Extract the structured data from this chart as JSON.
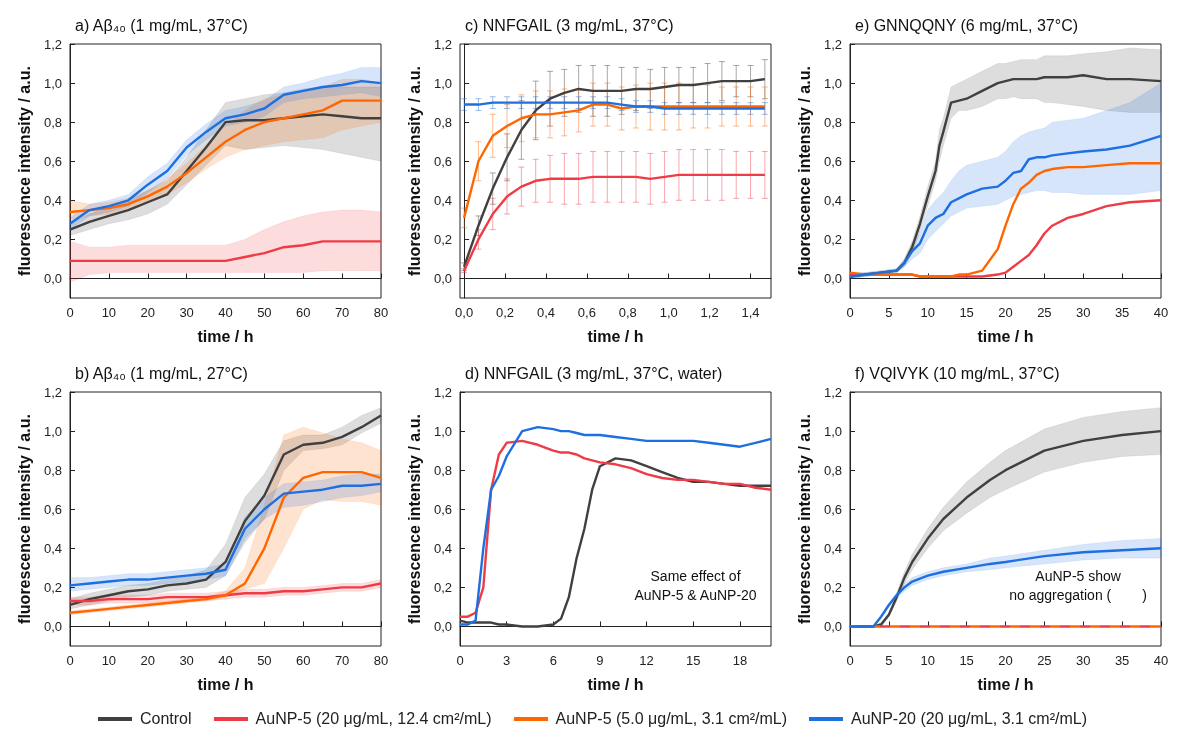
{
  "chart_data": [
    {
      "type": "line",
      "title": "a) Aβ₄₀ (1 mg/mL, 37°C)",
      "xlabel": "time / h",
      "ylabel": "fluorescence intensity / a.u.",
      "legend": "bottom",
      "xlim": [
        0,
        80
      ],
      "xticks": [
        0,
        10,
        20,
        30,
        40,
        50,
        60,
        70,
        80
      ],
      "ylim": [
        -0.1,
        1.2
      ],
      "yticks": [
        {
          "value": 0,
          "label": "0,0"
        },
        {
          "value": 0.2,
          "label": "0,2"
        },
        {
          "value": 0.4,
          "label": "0,4"
        },
        {
          "value": 0.6,
          "label": "0,6"
        },
        {
          "value": 0.8,
          "label": "0,8"
        },
        {
          "value": 1.0,
          "label": "1,0"
        },
        {
          "value": 1.2,
          "label": "1,2"
        }
      ],
      "x": [
        0,
        5,
        10,
        15,
        20,
        25,
        30,
        35,
        40,
        45,
        50,
        55,
        60,
        65,
        70,
        75,
        80
      ],
      "series": [
        {
          "name": "Control",
          "color": "#404040",
          "values": [
            0.25,
            0.29,
            0.32,
            0.35,
            0.39,
            0.43,
            0.55,
            0.67,
            0.8,
            0.81,
            0.81,
            0.82,
            0.83,
            0.84,
            0.83,
            0.82,
            0.82
          ],
          "lower": [
            0.22,
            0.25,
            0.28,
            0.3,
            0.33,
            0.38,
            0.48,
            0.58,
            0.68,
            0.66,
            0.67,
            0.68,
            0.67,
            0.66,
            0.64,
            0.62,
            0.6
          ],
          "upper": [
            0.28,
            0.33,
            0.36,
            0.4,
            0.45,
            0.5,
            0.62,
            0.76,
            0.9,
            0.92,
            0.94,
            0.95,
            0.97,
            0.98,
            0.98,
            0.98,
            0.98
          ]
        },
        {
          "name": "AuNP-5 (20 μg/mL, 12.4 cm²/mL)",
          "color": "#ef3b45",
          "values": [
            0.09,
            0.09,
            0.09,
            0.09,
            0.09,
            0.09,
            0.09,
            0.09,
            0.09,
            0.11,
            0.13,
            0.16,
            0.17,
            0.19,
            0.19,
            0.19,
            0.19
          ],
          "lower": [
            -0.02,
            0.02,
            0.03,
            0.03,
            0.03,
            0.03,
            0.03,
            0.03,
            0.03,
            0.03,
            0.03,
            0.03,
            0.03,
            0.04,
            0.04,
            0.04,
            0.04
          ],
          "upper": [
            0.19,
            0.16,
            0.16,
            0.17,
            0.17,
            0.17,
            0.17,
            0.17,
            0.17,
            0.2,
            0.25,
            0.29,
            0.32,
            0.34,
            0.35,
            0.35,
            0.34
          ]
        },
        {
          "name": "AuNP-5 (5.0 μg/mL, 3.1 cm²/mL)",
          "color": "#ff6600",
          "values": [
            0.34,
            0.35,
            0.36,
            0.38,
            0.42,
            0.47,
            0.54,
            0.62,
            0.7,
            0.76,
            0.8,
            0.82,
            0.84,
            0.86,
            0.91,
            0.91,
            0.91
          ],
          "lower": [
            0.3,
            0.32,
            0.33,
            0.35,
            0.39,
            0.43,
            0.49,
            0.56,
            0.62,
            0.66,
            0.68,
            0.7,
            0.71,
            0.72,
            0.76,
            0.78,
            0.8
          ],
          "upper": [
            0.4,
            0.38,
            0.39,
            0.41,
            0.45,
            0.51,
            0.59,
            0.68,
            0.78,
            0.86,
            0.92,
            0.94,
            0.96,
            0.98,
            1.02,
            1.02,
            1.0
          ]
        },
        {
          "name": "AuNP-20 (20 μg/mL, 3.1 cm²/mL)",
          "color": "#1e6fe0",
          "values": [
            0.28,
            0.35,
            0.37,
            0.4,
            0.48,
            0.55,
            0.67,
            0.75,
            0.82,
            0.84,
            0.87,
            0.94,
            0.96,
            0.98,
            0.99,
            1.01,
            1.0
          ],
          "lower": [
            0.25,
            0.32,
            0.34,
            0.37,
            0.44,
            0.51,
            0.63,
            0.71,
            0.78,
            0.8,
            0.83,
            0.9,
            0.92,
            0.93,
            0.94,
            0.95,
            0.93
          ],
          "upper": [
            0.31,
            0.38,
            0.4,
            0.43,
            0.52,
            0.59,
            0.71,
            0.79,
            0.86,
            0.88,
            0.91,
            0.98,
            1.0,
            1.03,
            1.05,
            1.08,
            1.08
          ]
        }
      ]
    },
    {
      "type": "line",
      "title": "c) NNFGAIL (3 mg/mL, 37°C)",
      "xlabel": "time / h",
      "ylabel": "fluorescence intensity / a.u.",
      "legend": "bottom",
      "xlim": [
        -0.02,
        1.5
      ],
      "xticks": [
        {
          "value": 0,
          "label": "0,0"
        },
        {
          "value": 0.2,
          "label": "0,2"
        },
        {
          "value": 0.4,
          "label": "0,4"
        },
        {
          "value": 0.6,
          "label": "0,6"
        },
        {
          "value": 0.8,
          "label": "0,8"
        },
        {
          "value": 1.0,
          "label": "1,0"
        },
        {
          "value": 1.2,
          "label": "1,2"
        },
        {
          "value": 1.4,
          "label": "1,4"
        }
      ],
      "ylim": [
        -0.1,
        1.2
      ],
      "yticks": [
        {
          "value": 0,
          "label": "0,0"
        },
        {
          "value": 0.2,
          "label": "0,2"
        },
        {
          "value": 0.4,
          "label": "0,4"
        },
        {
          "value": 0.6,
          "label": "0,6"
        },
        {
          "value": 0.8,
          "label": "0,8"
        },
        {
          "value": 1.0,
          "label": "1,0"
        },
        {
          "value": 1.2,
          "label": "1,2"
        }
      ],
      "x": [
        0,
        0.07,
        0.14,
        0.21,
        0.28,
        0.35,
        0.42,
        0.49,
        0.56,
        0.63,
        0.7,
        0.77,
        0.84,
        0.91,
        0.98,
        1.05,
        1.12,
        1.19,
        1.26,
        1.33,
        1.4,
        1.47
      ],
      "series": [
        {
          "name": "Control",
          "color": "#404040",
          "values": [
            0.06,
            0.27,
            0.46,
            0.62,
            0.76,
            0.86,
            0.92,
            0.95,
            0.97,
            0.96,
            0.96,
            0.96,
            0.97,
            0.97,
            0.98,
            0.99,
            0.99,
            1.0,
            1.01,
            1.01,
            1.01,
            1.02
          ],
          "errors": [
            0.02,
            0.05,
            0.08,
            0.12,
            0.15,
            0.15,
            0.14,
            0.12,
            0.12,
            0.13,
            0.13,
            0.12,
            0.11,
            0.1,
            0.1,
            0.09,
            0.09,
            0.1,
            0.1,
            0.08,
            0.08,
            0.1
          ]
        },
        {
          "name": "AuNP-5 (20 μg/mL, 12.4 cm²/mL)",
          "color": "#ef3b45",
          "values": [
            0.04,
            0.2,
            0.33,
            0.42,
            0.47,
            0.5,
            0.51,
            0.51,
            0.51,
            0.52,
            0.52,
            0.52,
            0.52,
            0.51,
            0.52,
            0.53,
            0.53,
            0.53,
            0.53,
            0.53,
            0.53,
            0.53
          ],
          "errors": [
            0.01,
            0.05,
            0.08,
            0.09,
            0.1,
            0.11,
            0.12,
            0.13,
            0.13,
            0.13,
            0.13,
            0.13,
            0.13,
            0.13,
            0.13,
            0.13,
            0.13,
            0.13,
            0.13,
            0.12,
            0.12,
            0.12
          ]
        },
        {
          "name": "AuNP-5 (5.0 μg/mL, 3.1 cm²/mL)",
          "color": "#ff6600",
          "values": [
            0.31,
            0.6,
            0.73,
            0.78,
            0.82,
            0.84,
            0.84,
            0.85,
            0.86,
            0.89,
            0.89,
            0.87,
            0.88,
            0.88,
            0.88,
            0.88,
            0.88,
            0.88,
            0.88,
            0.88,
            0.88,
            0.88
          ],
          "errors": [
            0.05,
            0.1,
            0.11,
            0.11,
            0.12,
            0.12,
            0.12,
            0.12,
            0.11,
            0.11,
            0.11,
            0.11,
            0.11,
            0.12,
            0.12,
            0.12,
            0.11,
            0.11,
            0.1,
            0.1,
            0.1,
            0.1
          ]
        },
        {
          "name": "AuNP-20 (20 μg/mL, 3.1 cm²/mL)",
          "color": "#1e6fe0",
          "values": [
            0.89,
            0.89,
            0.9,
            0.9,
            0.9,
            0.9,
            0.9,
            0.9,
            0.9,
            0.9,
            0.9,
            0.89,
            0.88,
            0.88,
            0.87,
            0.87,
            0.87,
            0.87,
            0.87,
            0.87,
            0.87,
            0.87
          ],
          "errors": [
            0.03,
            0.03,
            0.03,
            0.03,
            0.03,
            0.03,
            0.03,
            0.03,
            0.03,
            0.03,
            0.03,
            0.03,
            0.03,
            0.03,
            0.03,
            0.03,
            0.03,
            0.03,
            0.03,
            0.03,
            0.03,
            0.03
          ]
        }
      ]
    },
    {
      "type": "line",
      "title": "e) GNNQQNY (6 mg/mL, 37°C)",
      "xlabel": "time / h",
      "ylabel": "fluorescence intensity / a.u.",
      "legend": "bottom",
      "xlim": [
        0,
        40
      ],
      "xticks": [
        0,
        5,
        10,
        15,
        20,
        25,
        30,
        35,
        40
      ],
      "ylim": [
        -0.1,
        1.2
      ],
      "yticks": [
        {
          "value": 0,
          "label": "0,0"
        },
        {
          "value": 0.2,
          "label": "0,2"
        },
        {
          "value": 0.4,
          "label": "0,4"
        },
        {
          "value": 0.6,
          "label": "0,6"
        },
        {
          "value": 0.8,
          "label": "0,8"
        },
        {
          "value": 1.0,
          "label": "1,0"
        },
        {
          "value": 1.2,
          "label": "1,2"
        }
      ],
      "x": [
        0,
        2,
        4,
        6,
        7,
        8,
        9,
        10,
        11,
        11.5,
        12,
        13,
        14,
        15,
        17,
        19,
        20,
        21,
        22,
        23,
        24,
        25,
        26,
        28,
        30,
        33,
        36,
        40
      ],
      "series": [
        {
          "name": "Control",
          "color": "#404040",
          "values": [
            0.01,
            0.02,
            0.03,
            0.04,
            0.08,
            0.16,
            0.28,
            0.42,
            0.55,
            0.68,
            0.75,
            0.9,
            0.91,
            0.92,
            0.96,
            1.0,
            1.01,
            1.02,
            1.02,
            1.02,
            1.02,
            1.03,
            1.03,
            1.03,
            1.04,
            1.02,
            1.02,
            1.01
          ],
          "lower": [
            0.0,
            0.01,
            0.02,
            0.03,
            0.06,
            0.13,
            0.24,
            0.37,
            0.5,
            0.6,
            0.68,
            0.82,
            0.86,
            0.86,
            0.88,
            0.92,
            0.92,
            0.93,
            0.92,
            0.92,
            0.92,
            0.9,
            0.9,
            0.89,
            0.88,
            0.86,
            0.85,
            0.85
          ],
          "upper": [
            0.02,
            0.03,
            0.04,
            0.05,
            0.1,
            0.19,
            0.32,
            0.47,
            0.6,
            0.76,
            0.82,
            0.98,
            1.0,
            1.02,
            1.06,
            1.1,
            1.1,
            1.11,
            1.12,
            1.12,
            1.12,
            1.14,
            1.14,
            1.14,
            1.15,
            1.16,
            1.18,
            1.17
          ]
        },
        {
          "name": "AuNP-5 (20 μg/mL, 12.4 cm²/mL)",
          "color": "#ef3b45",
          "values": [
            0.02,
            0.02,
            0.02,
            0.02,
            0.02,
            0.02,
            0.01,
            0.01,
            0.01,
            0.01,
            0.01,
            0.01,
            0.01,
            0.01,
            0.01,
            0.02,
            0.03,
            0.06,
            0.09,
            0.12,
            0.17,
            0.23,
            0.27,
            0.31,
            0.33,
            0.37,
            0.39,
            0.4
          ]
        },
        {
          "name": "AuNP-5 (5.0 μg/mL, 3.1 cm²/mL)",
          "color": "#ff6600",
          "values": [
            0.03,
            0.02,
            0.02,
            0.02,
            0.02,
            0.02,
            0.01,
            0.01,
            0.01,
            0.01,
            0.01,
            0.01,
            0.02,
            0.02,
            0.04,
            0.15,
            0.27,
            0.38,
            0.46,
            0.49,
            0.53,
            0.55,
            0.56,
            0.57,
            0.57,
            0.58,
            0.59,
            0.59
          ]
        },
        {
          "name": "AuNP-20 (20 μg/mL, 3.1 cm²/mL)",
          "color": "#1e6fe0",
          "values": [
            0.01,
            0.02,
            0.03,
            0.04,
            0.08,
            0.14,
            0.18,
            0.27,
            0.31,
            0.32,
            0.33,
            0.39,
            0.41,
            0.43,
            0.46,
            0.47,
            0.5,
            0.54,
            0.55,
            0.61,
            0.62,
            0.62,
            0.63,
            0.64,
            0.65,
            0.66,
            0.68,
            0.73
          ],
          "lower": [
            0.0,
            0.01,
            0.02,
            0.03,
            0.06,
            0.1,
            0.13,
            0.2,
            0.24,
            0.26,
            0.28,
            0.32,
            0.34,
            0.36,
            0.37,
            0.38,
            0.4,
            0.42,
            0.43,
            0.44,
            0.45,
            0.45,
            0.44,
            0.44,
            0.43,
            0.43,
            0.43,
            0.45
          ],
          "upper": [
            0.02,
            0.03,
            0.04,
            0.05,
            0.1,
            0.18,
            0.23,
            0.35,
            0.4,
            0.42,
            0.44,
            0.5,
            0.55,
            0.58,
            0.6,
            0.62,
            0.65,
            0.7,
            0.73,
            0.75,
            0.76,
            0.77,
            0.8,
            0.81,
            0.82,
            0.86,
            0.9,
            1.0
          ]
        }
      ]
    },
    {
      "type": "line",
      "title": "b) Aβ₄₀ (1 mg/mL, 27°C)",
      "xlabel": "time / h",
      "ylabel": "fluorescence intensity / a.u.",
      "legend": "bottom",
      "xlim": [
        0,
        80
      ],
      "xticks": [
        0,
        10,
        20,
        30,
        40,
        50,
        60,
        70,
        80
      ],
      "ylim": [
        -0.1,
        1.2
      ],
      "yticks": [
        {
          "value": 0,
          "label": "0,0"
        },
        {
          "value": 0.2,
          "label": "0,2"
        },
        {
          "value": 0.4,
          "label": "0,4"
        },
        {
          "value": 0.6,
          "label": "0,6"
        },
        {
          "value": 0.8,
          "label": "0,8"
        },
        {
          "value": 1.0,
          "label": "1,0"
        },
        {
          "value": 1.2,
          "label": "1,2"
        }
      ],
      "x": [
        0,
        5,
        10,
        15,
        20,
        25,
        30,
        35,
        40,
        45,
        50,
        55,
        60,
        65,
        70,
        75,
        80
      ],
      "series": [
        {
          "name": "Control",
          "color": "#404040",
          "values": [
            0.11,
            0.14,
            0.16,
            0.18,
            0.19,
            0.21,
            0.22,
            0.24,
            0.33,
            0.54,
            0.67,
            0.88,
            0.93,
            0.94,
            0.97,
            1.02,
            1.08
          ],
          "lower": [
            0.09,
            0.11,
            0.13,
            0.15,
            0.16,
            0.18,
            0.19,
            0.2,
            0.26,
            0.43,
            0.55,
            0.8,
            0.9,
            0.91,
            0.93,
            0.99,
            1.04
          ],
          "upper": [
            0.14,
            0.17,
            0.19,
            0.21,
            0.22,
            0.24,
            0.26,
            0.29,
            0.42,
            0.66,
            0.78,
            0.95,
            0.98,
            0.98,
            1.02,
            1.08,
            1.12
          ]
        },
        {
          "name": "AuNP-5 (20 μg/mL, 12.4 cm²/mL)",
          "color": "#ef3b45",
          "values": [
            0.13,
            0.13,
            0.14,
            0.14,
            0.14,
            0.15,
            0.15,
            0.15,
            0.16,
            0.17,
            0.17,
            0.18,
            0.18,
            0.19,
            0.2,
            0.2,
            0.22
          ],
          "lower": [
            0.11,
            0.11,
            0.12,
            0.12,
            0.12,
            0.13,
            0.13,
            0.13,
            0.14,
            0.15,
            0.15,
            0.16,
            0.16,
            0.17,
            0.18,
            0.18,
            0.2
          ],
          "upper": [
            0.15,
            0.15,
            0.16,
            0.16,
            0.16,
            0.17,
            0.17,
            0.17,
            0.18,
            0.19,
            0.19,
            0.2,
            0.2,
            0.21,
            0.22,
            0.22,
            0.24
          ]
        },
        {
          "name": "AuNP-5 (5.0 μg/mL, 3.1 cm²/mL)",
          "color": "#ff6600",
          "values": [
            0.07,
            0.08,
            0.09,
            0.1,
            0.11,
            0.12,
            0.13,
            0.14,
            0.16,
            0.22,
            0.4,
            0.66,
            0.76,
            0.79,
            0.79,
            0.79,
            0.76
          ],
          "lower": [
            0.06,
            0.07,
            0.08,
            0.09,
            0.1,
            0.11,
            0.12,
            0.13,
            0.15,
            0.19,
            0.22,
            0.4,
            0.6,
            0.65,
            0.64,
            0.64,
            0.62
          ],
          "upper": [
            0.08,
            0.09,
            0.1,
            0.11,
            0.12,
            0.13,
            0.14,
            0.15,
            0.18,
            0.3,
            0.62,
            0.98,
            1.02,
            0.99,
            0.96,
            0.94,
            0.9
          ]
        },
        {
          "name": "AuNP-20 (20 μg/mL, 3.1 cm²/mL)",
          "color": "#1e6fe0",
          "values": [
            0.21,
            0.22,
            0.23,
            0.24,
            0.24,
            0.25,
            0.26,
            0.27,
            0.29,
            0.5,
            0.6,
            0.68,
            0.69,
            0.7,
            0.72,
            0.72,
            0.73
          ],
          "lower": [
            0.18,
            0.19,
            0.2,
            0.21,
            0.21,
            0.22,
            0.23,
            0.24,
            0.26,
            0.45,
            0.55,
            0.61,
            0.62,
            0.64,
            0.66,
            0.67,
            0.69
          ],
          "upper": [
            0.25,
            0.25,
            0.26,
            0.27,
            0.27,
            0.28,
            0.29,
            0.3,
            0.32,
            0.56,
            0.66,
            0.73,
            0.74,
            0.75,
            0.77,
            0.78,
            0.78
          ]
        }
      ]
    },
    {
      "type": "line",
      "title": "d) NNFGAIL (3 mg/mL, 37°C, water)",
      "xlabel": "time / h",
      "ylabel": "fluorescence intensity / a.u.",
      "legend": "bottom",
      "annotations": [
        "Same effect of\nAuNP-5 & AuNP-20"
      ],
      "xlim": [
        0,
        20
      ],
      "xticks": [
        0,
        3,
        6,
        9,
        12,
        15,
        18
      ],
      "ylim": [
        -0.1,
        1.2
      ],
      "yticks": [
        {
          "value": 0,
          "label": "0,0"
        },
        {
          "value": 0.2,
          "label": "0,2"
        },
        {
          "value": 0.4,
          "label": "0,4"
        },
        {
          "value": 0.6,
          "label": "0,6"
        },
        {
          "value": 0.8,
          "label": "0,8"
        },
        {
          "value": 1.0,
          "label": "1,0"
        },
        {
          "value": 1.2,
          "label": "1,2"
        }
      ],
      "x": [
        0,
        0.5,
        1,
        1.5,
        2,
        2.5,
        3,
        4,
        5,
        6,
        6.5,
        7,
        7.5,
        8,
        8.5,
        9,
        10,
        11,
        12,
        13,
        14,
        15,
        16,
        17,
        18,
        19,
        20
      ],
      "series": [
        {
          "name": "Control",
          "color": "#404040",
          "values": [
            0.03,
            0.02,
            0.02,
            0.02,
            0.02,
            0.01,
            0.01,
            0.0,
            0.0,
            0.01,
            0.04,
            0.15,
            0.35,
            0.5,
            0.7,
            0.82,
            0.86,
            0.85,
            0.82,
            0.79,
            0.76,
            0.74,
            0.74,
            0.73,
            0.72,
            0.72,
            0.72
          ]
        },
        {
          "name": "AuNP-5 (20 μg/mL, 12.4 cm²/mL)",
          "color": "#ef3b45",
          "values": [
            0.05,
            0.05,
            0.07,
            0.2,
            0.7,
            0.88,
            0.94,
            0.95,
            0.93,
            0.9,
            0.89,
            0.89,
            0.88,
            0.86,
            0.85,
            0.84,
            0.83,
            0.81,
            0.78,
            0.76,
            0.75,
            0.75,
            0.74,
            0.73,
            0.73,
            0.71,
            0.7
          ]
        },
        {
          "name": "AuNP-20 (20 μg/mL, 3.1 cm²/mL)",
          "color": "#1e6fe0",
          "values": [
            0.01,
            0.01,
            0.03,
            0.4,
            0.7,
            0.77,
            0.87,
            1.0,
            1.02,
            1.01,
            1.0,
            1.0,
            0.99,
            0.98,
            0.98,
            0.98,
            0.97,
            0.96,
            0.95,
            0.95,
            0.95,
            0.95,
            0.94,
            0.93,
            0.92,
            0.94,
            0.96
          ]
        }
      ]
    },
    {
      "type": "line",
      "title": "f) VQIVYK (10 mg/mL, 37°C)",
      "xlabel": "time / h",
      "ylabel": "fluorescence intensity / a.u.",
      "legend": "bottom",
      "annotations": [
        "AuNP-5 show\nno aggregation (        )"
      ],
      "xlim": [
        0,
        40
      ],
      "xticks": [
        0,
        5,
        10,
        15,
        20,
        25,
        30,
        35,
        40
      ],
      "ylim": [
        -0.1,
        1.2
      ],
      "yticks": [
        {
          "value": 0,
          "label": "0,0"
        },
        {
          "value": 0.2,
          "label": "0,2"
        },
        {
          "value": 0.4,
          "label": "0,4"
        },
        {
          "value": 0.6,
          "label": "0,6"
        },
        {
          "value": 0.8,
          "label": "0,8"
        },
        {
          "value": 1.0,
          "label": "1,0"
        },
        {
          "value": 1.2,
          "label": "1,2"
        }
      ],
      "x": [
        0,
        2,
        3,
        4,
        5,
        6,
        7,
        8,
        10,
        12,
        15,
        18,
        20,
        25,
        30,
        35,
        40
      ],
      "series": [
        {
          "name": "Control",
          "color": "#404040",
          "values": [
            0,
            0,
            0,
            0.01,
            0.06,
            0.15,
            0.25,
            0.33,
            0.45,
            0.55,
            0.66,
            0.75,
            0.8,
            0.9,
            0.95,
            0.98,
            1.0
          ],
          "lower": [
            0,
            0,
            0,
            0,
            0.05,
            0.13,
            0.22,
            0.29,
            0.4,
            0.49,
            0.58,
            0.66,
            0.7,
            0.79,
            0.84,
            0.87,
            0.88
          ],
          "upper": [
            0,
            0,
            0,
            0.02,
            0.07,
            0.17,
            0.28,
            0.37,
            0.5,
            0.61,
            0.74,
            0.84,
            0.9,
            1.01,
            1.07,
            1.1,
            1.12
          ]
        },
        {
          "name": "AuNP-5 (20 μg/mL, 12.4 cm²/mL)",
          "color": "#ef3b45",
          "line_style": "dashed",
          "values": [
            0,
            0,
            0,
            0,
            0,
            0,
            0,
            0,
            0,
            0,
            0,
            0,
            0,
            0,
            0,
            0,
            0
          ]
        },
        {
          "name": "AuNP-5 (5.0 μg/mL, 3.1 cm²/mL)",
          "color": "#ff6600",
          "line_style": "dashed",
          "values": [
            0,
            0,
            0,
            0,
            0,
            0,
            0,
            0,
            0,
            0,
            0,
            0,
            0,
            0,
            0,
            0,
            0
          ]
        },
        {
          "name": "AuNP-20 (20 μg/mL, 3.1 cm²/mL)",
          "color": "#1e6fe0",
          "values": [
            0,
            0,
            0,
            0.05,
            0.11,
            0.16,
            0.2,
            0.23,
            0.26,
            0.28,
            0.3,
            0.32,
            0.33,
            0.36,
            0.38,
            0.39,
            0.4
          ],
          "lower": [
            0,
            0,
            0,
            0.04,
            0.1,
            0.15,
            0.18,
            0.21,
            0.24,
            0.26,
            0.28,
            0.29,
            0.3,
            0.32,
            0.34,
            0.35,
            0.35
          ],
          "upper": [
            0,
            0,
            0,
            0.06,
            0.12,
            0.17,
            0.22,
            0.25,
            0.28,
            0.3,
            0.32,
            0.35,
            0.36,
            0.39,
            0.42,
            0.44,
            0.45
          ]
        }
      ]
    }
  ]
}
